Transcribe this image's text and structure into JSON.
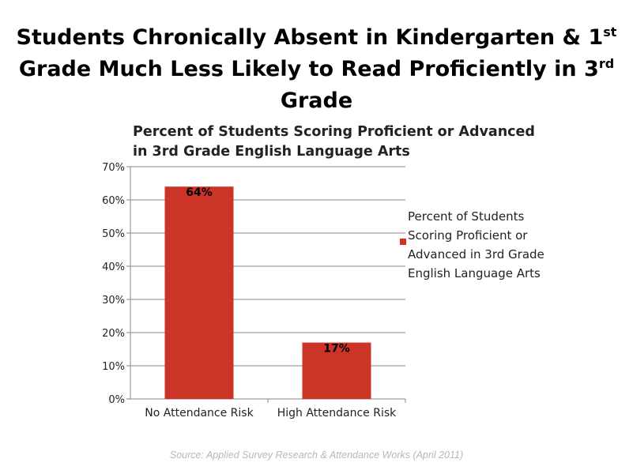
{
  "slide": {
    "title_line1": "Students Chronically Absent in Kindergarten & 1",
    "title_line1_sup": "st",
    "title_line2": "Grade Much Less Likely to Read Proficiently in 3",
    "title_line2_sup": "rd",
    "title_line2_end": " Grade",
    "source": "Source: Applied Survey Research & Attendance Works  (April 2011)"
  },
  "chart_data": {
    "type": "bar",
    "title_line1": "Percent of Students Scoring Proficient or Advanced",
    "title_line2": "in 3rd Grade English Language Arts",
    "categories": [
      "No Attendance Risk",
      "High Attendance Risk"
    ],
    "series": [
      {
        "name": "Percent of Students Scoring Proficient or Advanced in 3rd Grade English Language Arts",
        "values": [
          64,
          17
        ],
        "data_labels": [
          "64%",
          "17%"
        ],
        "color": "#cc3428"
      }
    ],
    "y_ticks": [
      0,
      10,
      20,
      30,
      40,
      50,
      60,
      70
    ],
    "y_tick_labels": [
      "0%",
      "10%",
      "20%",
      "30%",
      "40%",
      "50%",
      "60%",
      "70%"
    ],
    "ylim": [
      0,
      70
    ],
    "grid": true,
    "legend_position": "right",
    "legend_lines": [
      "Percent of Students",
      "Scoring Proficient or",
      "Advanced in 3rd Grade",
      "English Language Arts"
    ]
  }
}
